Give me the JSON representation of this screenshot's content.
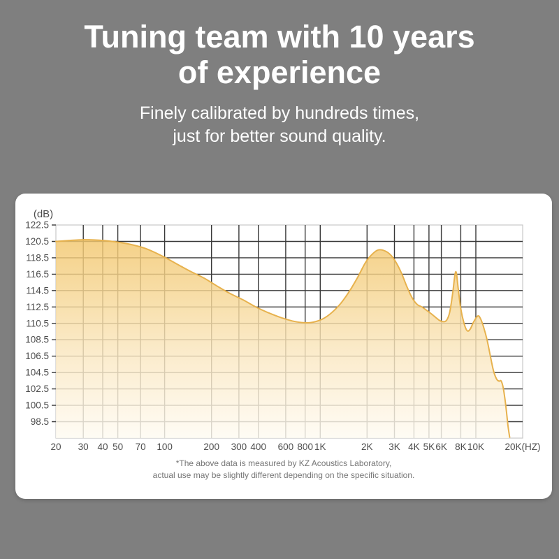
{
  "page": {
    "background_color": "#7f7f7f",
    "panel_color": "#ffffff"
  },
  "header": {
    "title_lines": [
      "Tuning team with 10 years",
      "of experience"
    ],
    "subtitle_lines": [
      "Finely calibrated by hundreds times,",
      "just for better sound quality."
    ]
  },
  "footer": {
    "note_lines": [
      "*The above data is measured by KZ Acoustics Laboratory,",
      "actual use may be slightly different depending on the specific situation."
    ]
  },
  "chart_data": {
    "type": "area",
    "title": "",
    "ylabel": "(dB)",
    "xlabel": "",
    "x_scale": "log",
    "xlim": [
      20,
      20000
    ],
    "ylim": [
      96.5,
      122.5
    ],
    "grid": true,
    "legend": "none",
    "y_ticks": [
      122.5,
      120.5,
      118.5,
      116.5,
      114.5,
      112.5,
      110.5,
      108.5,
      106.5,
      104.5,
      102.5,
      100.5,
      98.5
    ],
    "x_ticks": [
      {
        "f": 20,
        "label": "20"
      },
      {
        "f": 30,
        "label": "30"
      },
      {
        "f": 40,
        "label": "40"
      },
      {
        "f": 50,
        "label": "50"
      },
      {
        "f": 70,
        "label": "70"
      },
      {
        "f": 100,
        "label": "100"
      },
      {
        "f": 200,
        "label": "200"
      },
      {
        "f": 300,
        "label": "300"
      },
      {
        "f": 400,
        "label": "400"
      },
      {
        "f": 600,
        "label": "600"
      },
      {
        "f": 800,
        "label": "800"
      },
      {
        "f": 1000,
        "label": "1K"
      },
      {
        "f": 2000,
        "label": "2K"
      },
      {
        "f": 3000,
        "label": "3K"
      },
      {
        "f": 4000,
        "label": "4K"
      },
      {
        "f": 5000,
        "label": "5K"
      },
      {
        "f": 6000,
        "label": "6K"
      },
      {
        "f": 8000,
        "label": "8K"
      },
      {
        "f": 10000,
        "label": "10K"
      },
      {
        "f": 20000,
        "label": "20K(HZ)"
      }
    ],
    "series": [
      {
        "name": "frequency-response-db",
        "points": [
          [
            20,
            120.5
          ],
          [
            24,
            120.6
          ],
          [
            30,
            120.7
          ],
          [
            38,
            120.65
          ],
          [
            48,
            120.45
          ],
          [
            60,
            120.15
          ],
          [
            75,
            119.65
          ],
          [
            90,
            119.0
          ],
          [
            105,
            118.35
          ],
          [
            125,
            117.55
          ],
          [
            150,
            116.75
          ],
          [
            180,
            116.0
          ],
          [
            215,
            115.1
          ],
          [
            260,
            114.2
          ],
          [
            320,
            113.35
          ],
          [
            390,
            112.45
          ],
          [
            470,
            111.75
          ],
          [
            560,
            111.2
          ],
          [
            660,
            110.8
          ],
          [
            760,
            110.6
          ],
          [
            870,
            110.6
          ],
          [
            1000,
            110.9
          ],
          [
            1150,
            111.6
          ],
          [
            1350,
            112.9
          ],
          [
            1550,
            114.5
          ],
          [
            1750,
            116.2
          ],
          [
            1950,
            117.9
          ],
          [
            2150,
            118.9
          ],
          [
            2350,
            119.45
          ],
          [
            2600,
            119.35
          ],
          [
            2850,
            118.8
          ],
          [
            3100,
            117.8
          ],
          [
            3350,
            116.5
          ],
          [
            3600,
            115.0
          ],
          [
            3900,
            113.6
          ],
          [
            4200,
            112.8
          ],
          [
            4500,
            112.5
          ],
          [
            4900,
            112.0
          ],
          [
            5300,
            111.5
          ],
          [
            5800,
            110.9
          ],
          [
            6200,
            110.7
          ],
          [
            6500,
            110.9
          ],
          [
            6800,
            111.9
          ],
          [
            7100,
            114.2
          ],
          [
            7350,
            116.5
          ],
          [
            7500,
            116.6
          ],
          [
            7700,
            114.8
          ],
          [
            8000,
            112.3
          ],
          [
            8400,
            110.5
          ],
          [
            8800,
            109.6
          ],
          [
            9200,
            109.8
          ],
          [
            9700,
            110.7
          ],
          [
            10300,
            111.4
          ],
          [
            10700,
            111.1
          ],
          [
            11200,
            110.1
          ],
          [
            11800,
            108.5
          ],
          [
            12400,
            106.5
          ],
          [
            13000,
            104.7
          ],
          [
            13600,
            103.7
          ],
          [
            14100,
            103.45
          ],
          [
            14500,
            103.5
          ],
          [
            14900,
            102.9
          ],
          [
            15300,
            101.6
          ],
          [
            15700,
            99.9
          ],
          [
            16100,
            98.0
          ],
          [
            16500,
            96.6
          ]
        ]
      }
    ],
    "colors": {
      "area_top": "#F2C66C",
      "area_upper_mid": "#F6D693",
      "area_mid": "#FAE7C0",
      "area_lower": "#FDF4E1",
      "area_bottom": "#FEFBF2",
      "line": "#E7B24E",
      "grid": "#383838",
      "frame": "#c8c8c8",
      "tick_label": "#4c4c4c"
    }
  }
}
